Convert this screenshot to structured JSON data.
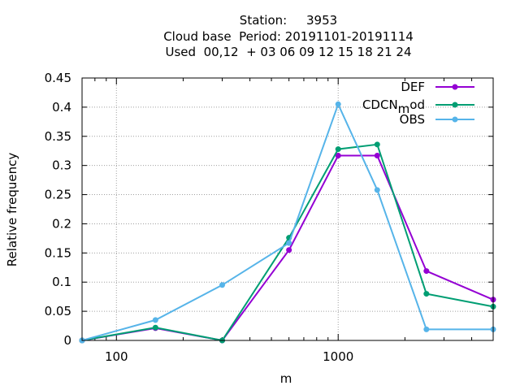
{
  "chart_data": {
    "type": "line",
    "title_lines": [
      "Station:     3953",
      "Cloud base  Period: 20191101-20191114",
      "Used  00,12  + 03 06 09 12 15 18 21 24"
    ],
    "xlabel": "m",
    "ylabel": "Relative frequency",
    "x_scale": "log",
    "xlim": [
      70,
      5000
    ],
    "ylim": [
      0,
      0.45
    ],
    "x_ticks": [
      100,
      1000
    ],
    "x_tick_labels": [
      "100",
      "1000"
    ],
    "y_ticks": [
      0,
      0.05,
      0.1,
      0.15,
      0.2,
      0.25,
      0.3,
      0.35,
      0.4,
      0.45
    ],
    "y_tick_labels": [
      "0",
      "0.05",
      "0.1",
      "0.15",
      "0.2",
      "0.25",
      "0.3",
      "0.35",
      "0.4",
      "0.45"
    ],
    "grid": true,
    "legend_position": "top-right",
    "x": [
      70,
      150,
      300,
      600,
      1000,
      1500,
      2500,
      5000
    ],
    "series": [
      {
        "name": "DEF",
        "color": "#9400d3",
        "values": [
          0,
          0.021,
          0,
          0.155,
          0.317,
          0.317,
          0.119,
          0.07
        ]
      },
      {
        "name": "CDCN_mod",
        "display_name_main": "CDCN",
        "display_name_sub": "m",
        "display_name_tail": "od",
        "color": "#009e73",
        "values": [
          0,
          0.022,
          0,
          0.176,
          0.328,
          0.336,
          0.08,
          0.058
        ]
      },
      {
        "name": "OBS",
        "color": "#56b4e9",
        "values": [
          0,
          0.035,
          0.095,
          0.167,
          0.405,
          0.258,
          0.019,
          0.019
        ]
      }
    ]
  }
}
